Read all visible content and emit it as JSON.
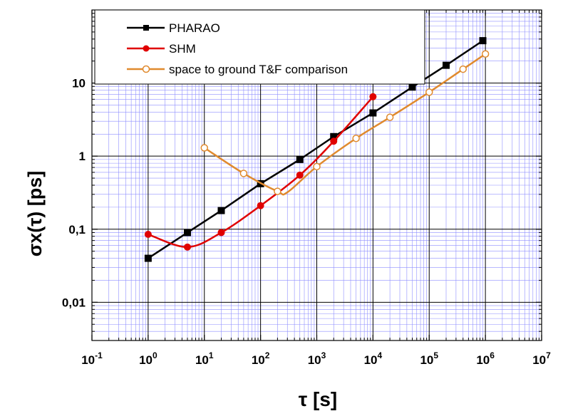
{
  "chart_data": {
    "type": "line",
    "xscale": "log",
    "yscale": "log",
    "xlim": [
      0.1,
      10000000
    ],
    "ylim": [
      0.003,
      100
    ],
    "xlabel": "τ [s]",
    "ylabel": "σx(τ)  [ps]",
    "x_ticks": [
      {
        "base": "10",
        "exp": "-1"
      },
      {
        "base": "10",
        "exp": "0"
      },
      {
        "base": "10",
        "exp": "1"
      },
      {
        "base": "10",
        "exp": "2"
      },
      {
        "base": "10",
        "exp": "3"
      },
      {
        "base": "10",
        "exp": "4"
      },
      {
        "base": "10",
        "exp": "5"
      },
      {
        "base": "10",
        "exp": "6"
      },
      {
        "base": "10",
        "exp": "7"
      }
    ],
    "y_ticks": [
      "0,01",
      "0,1",
      "1",
      "10"
    ],
    "legend_position": "top-left",
    "series": [
      {
        "name": "PHARAO",
        "color": "#000000",
        "marker": "square",
        "x": [
          1,
          5,
          20,
          100,
          500,
          2000,
          10000,
          50000,
          200000,
          900000
        ],
        "y": [
          0.04,
          0.09,
          0.18,
          0.42,
          0.9,
          1.85,
          3.9,
          8.8,
          17.5,
          38
        ]
      },
      {
        "name": "SHM",
        "color": "#e00000",
        "marker": "filled-circle",
        "x": [
          1,
          5,
          20,
          100,
          500,
          2000,
          10000
        ],
        "y": [
          0.085,
          0.057,
          0.09,
          0.21,
          0.55,
          1.6,
          6.5
        ]
      },
      {
        "name": "space to ground T&F comparison",
        "color": "#e08a2e",
        "marker": "open-circle",
        "x": [
          10,
          50,
          200,
          300,
          1000,
          5000,
          20000,
          100000,
          400000,
          1000000
        ],
        "y": [
          1.3,
          0.58,
          0.33,
          0.32,
          0.72,
          1.75,
          3.4,
          7.5,
          15.5,
          25
        ]
      }
    ]
  }
}
